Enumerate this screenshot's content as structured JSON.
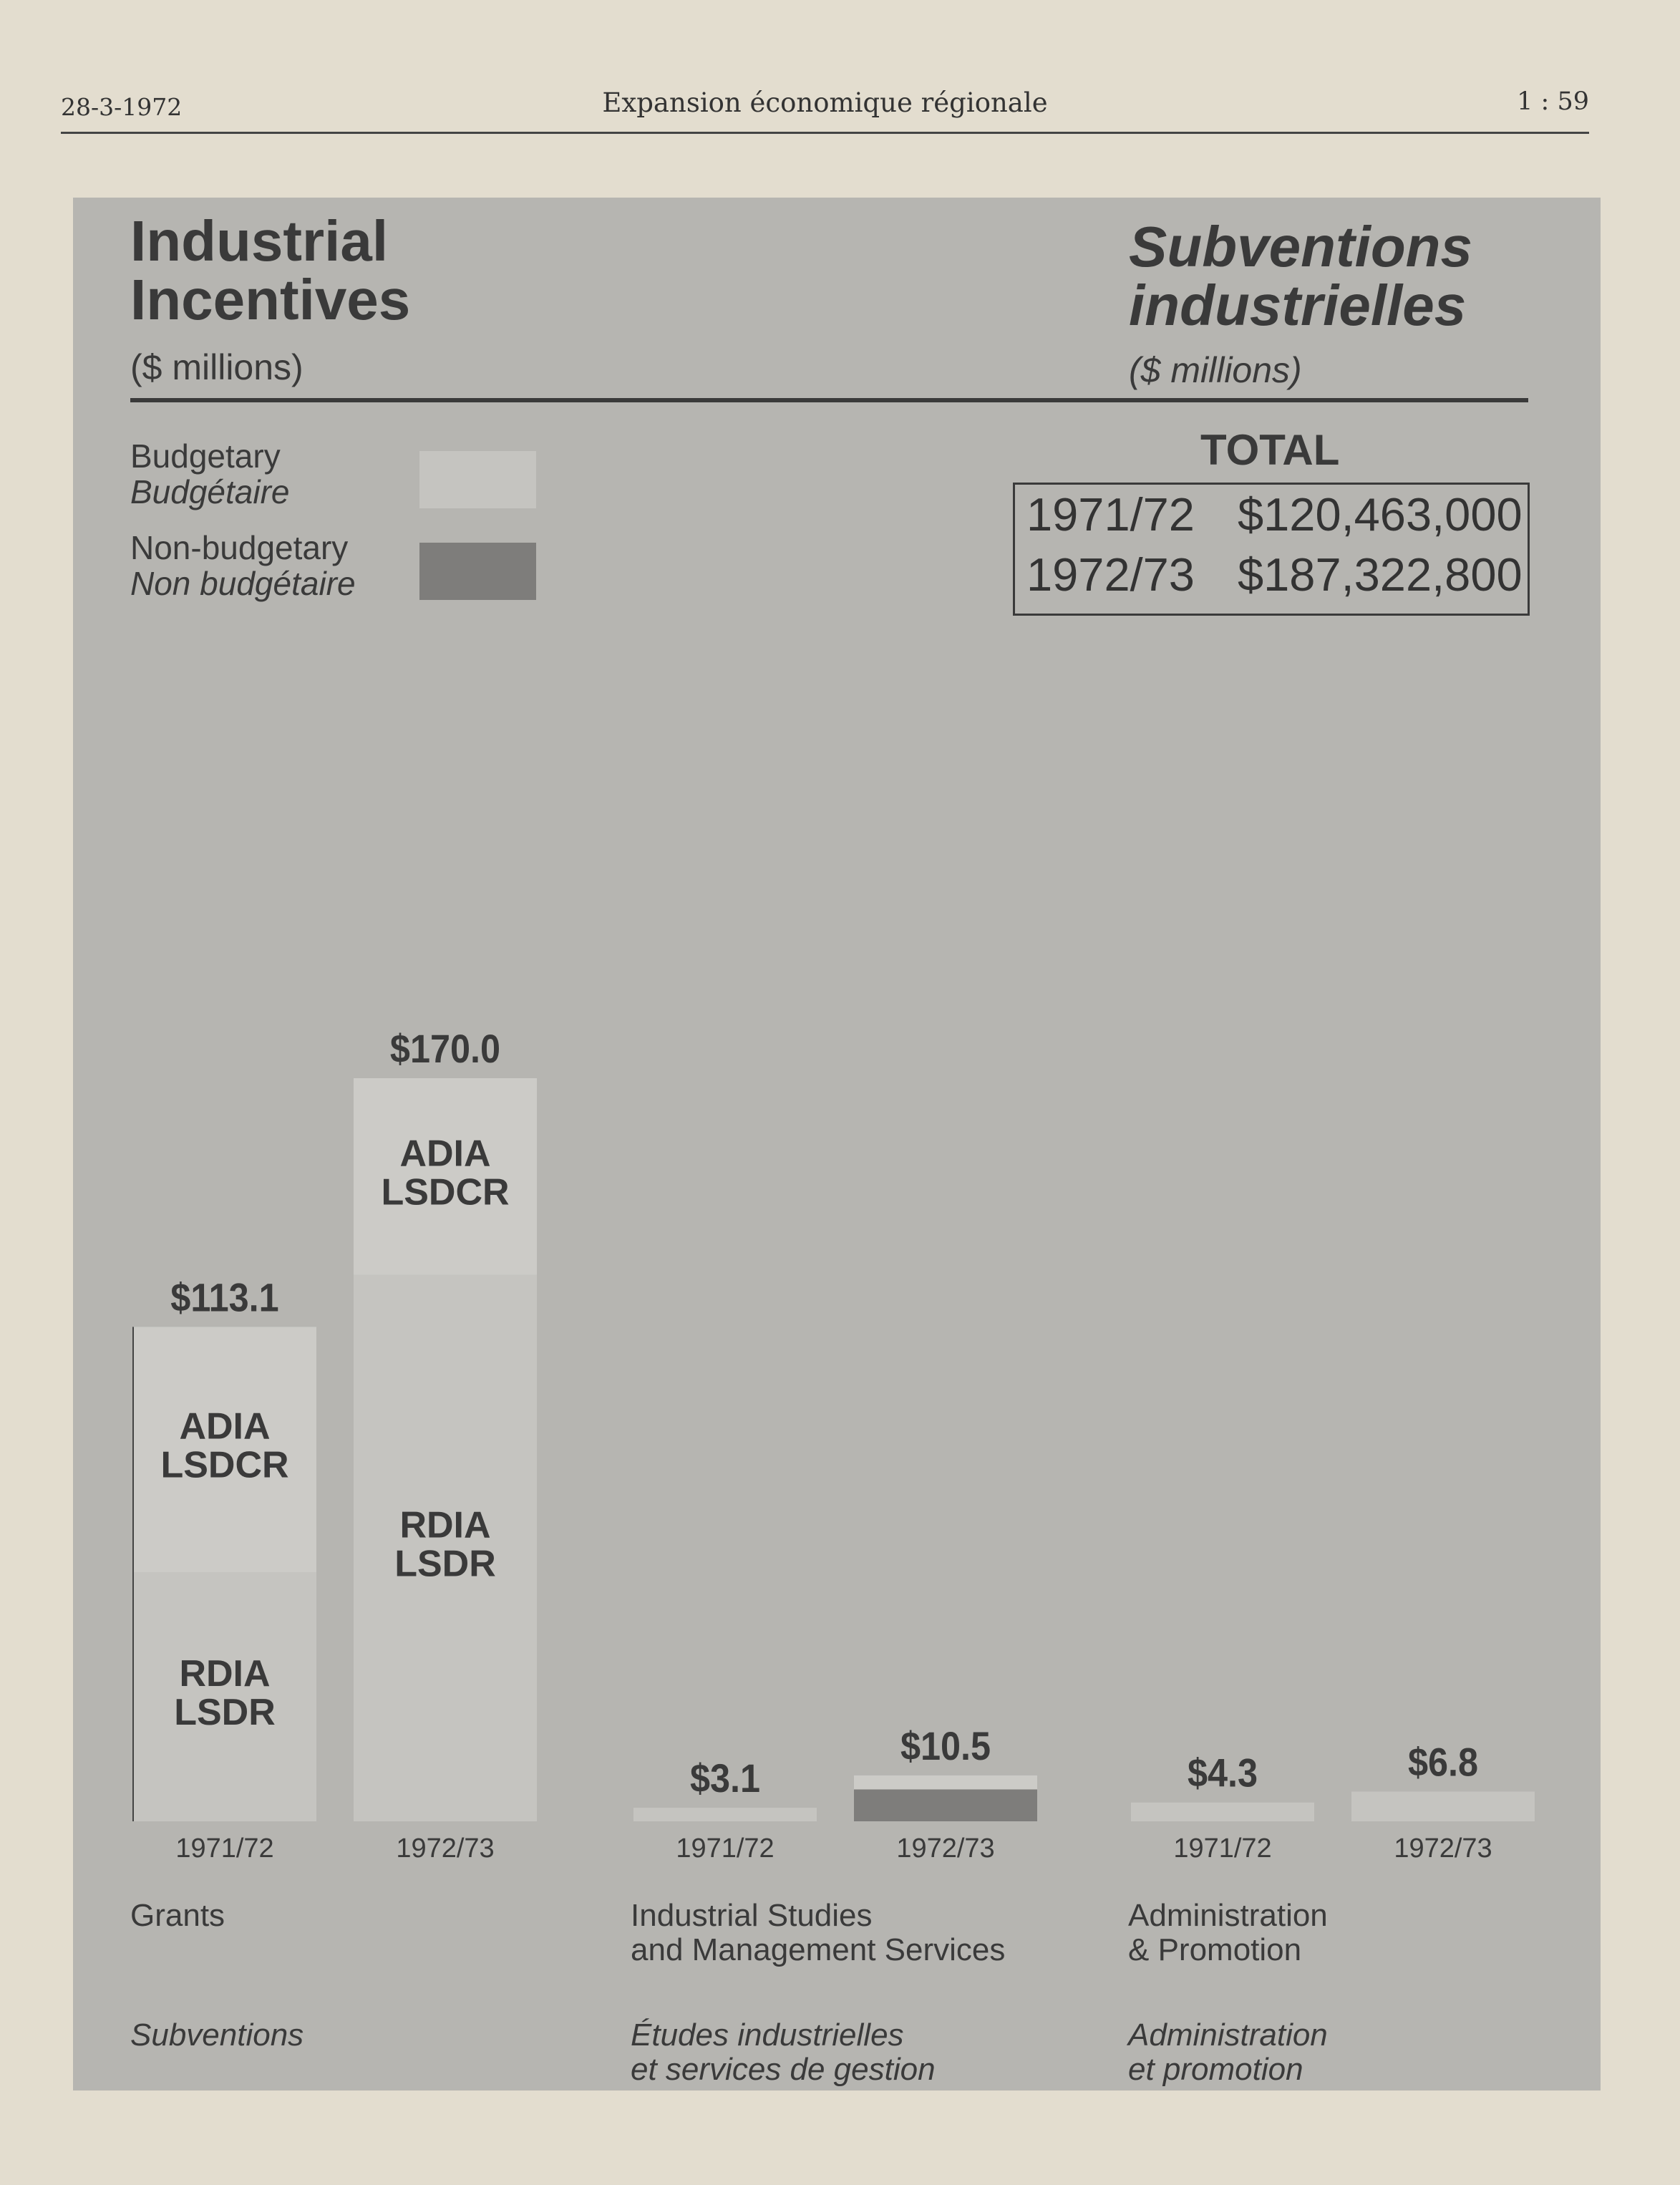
{
  "page_header": {
    "date": "28-3-1972",
    "title": "Expansion économique régionale",
    "page_number": "1 : 59"
  },
  "titles": {
    "en": [
      "Industrial",
      "Incentives"
    ],
    "fr": [
      "Subventions",
      "industrielles"
    ],
    "unit_en": "($ millions)",
    "unit_fr": "($ millions)"
  },
  "legend": {
    "budgetary_en": "Budgetary",
    "budgetary_fr": "Budgétaire",
    "nonbudgetary_en": "Non-budgetary",
    "nonbudgetary_fr": "Non budgétaire"
  },
  "total": {
    "heading": "TOTAL",
    "rows": [
      {
        "year": "1971/72",
        "amount": "$120,463,000"
      },
      {
        "year": "1972/73",
        "amount": "$187,322,800"
      }
    ]
  },
  "colors": {
    "panel": "#b6b5b1",
    "budgetary": "#c5c4c0",
    "budgetary_light": "#cccbc7",
    "nonbudgetary": "#7e7d7b",
    "text": "#3a3a3a"
  },
  "chart_data": {
    "type": "bar",
    "unit": "$ millions",
    "ylim": [
      0,
      170
    ],
    "groups": [
      {
        "label_en": [
          "Grants"
        ],
        "label_fr": [
          "Subventions"
        ],
        "bars": [
          {
            "year": "1971/72",
            "total": 113.1,
            "total_label": "$113.1",
            "segments": [
              {
                "name": "RDIA / LSDR",
                "lines": [
                  "RDIA",
                  "LSDR"
                ],
                "value": 57.0,
                "type": "budgetary"
              },
              {
                "name": "ADIA / LSDCR",
                "lines": [
                  "ADIA",
                  "LSDCR"
                ],
                "value": 56.1,
                "type": "budgetary"
              }
            ]
          },
          {
            "year": "1972/73",
            "total": 170.0,
            "total_label": "$170.0",
            "segments": [
              {
                "name": "RDIA / LSDR",
                "lines": [
                  "RDIA",
                  "LSDR"
                ],
                "value": 125.0,
                "type": "budgetary"
              },
              {
                "name": "ADIA / LSDCR",
                "lines": [
                  "ADIA",
                  "LSDCR"
                ],
                "value": 45.0,
                "type": "budgetary"
              }
            ]
          }
        ]
      },
      {
        "label_en": [
          "Industrial Studies",
          "and Management Services"
        ],
        "label_fr": [
          "Études industrielles",
          "et services de gestion"
        ],
        "bars": [
          {
            "year": "1971/72",
            "total": 3.1,
            "total_label": "$3.1",
            "segments": [
              {
                "name": "Budgetary",
                "lines": [],
                "value": 3.1,
                "type": "budgetary"
              }
            ]
          },
          {
            "year": "1972/73",
            "total": 10.5,
            "total_label": "$10.5",
            "segments": [
              {
                "name": "Non-budgetary",
                "lines": [],
                "value": 7.3,
                "type": "nonbudgetary"
              },
              {
                "name": "Budgetary",
                "lines": [],
                "value": 3.2,
                "type": "budgetary"
              }
            ]
          }
        ]
      },
      {
        "label_en": [
          "Administration",
          "& Promotion"
        ],
        "label_fr": [
          "Administration",
          "et promotion"
        ],
        "bars": [
          {
            "year": "1971/72",
            "total": 4.3,
            "total_label": "$4.3",
            "segments": [
              {
                "name": "Budgetary",
                "lines": [],
                "value": 4.3,
                "type": "budgetary"
              }
            ]
          },
          {
            "year": "1972/73",
            "total": 6.8,
            "total_label": "$6.8",
            "segments": [
              {
                "name": "Budgetary",
                "lines": [],
                "value": 6.8,
                "type": "budgetary"
              }
            ]
          }
        ]
      }
    ]
  }
}
